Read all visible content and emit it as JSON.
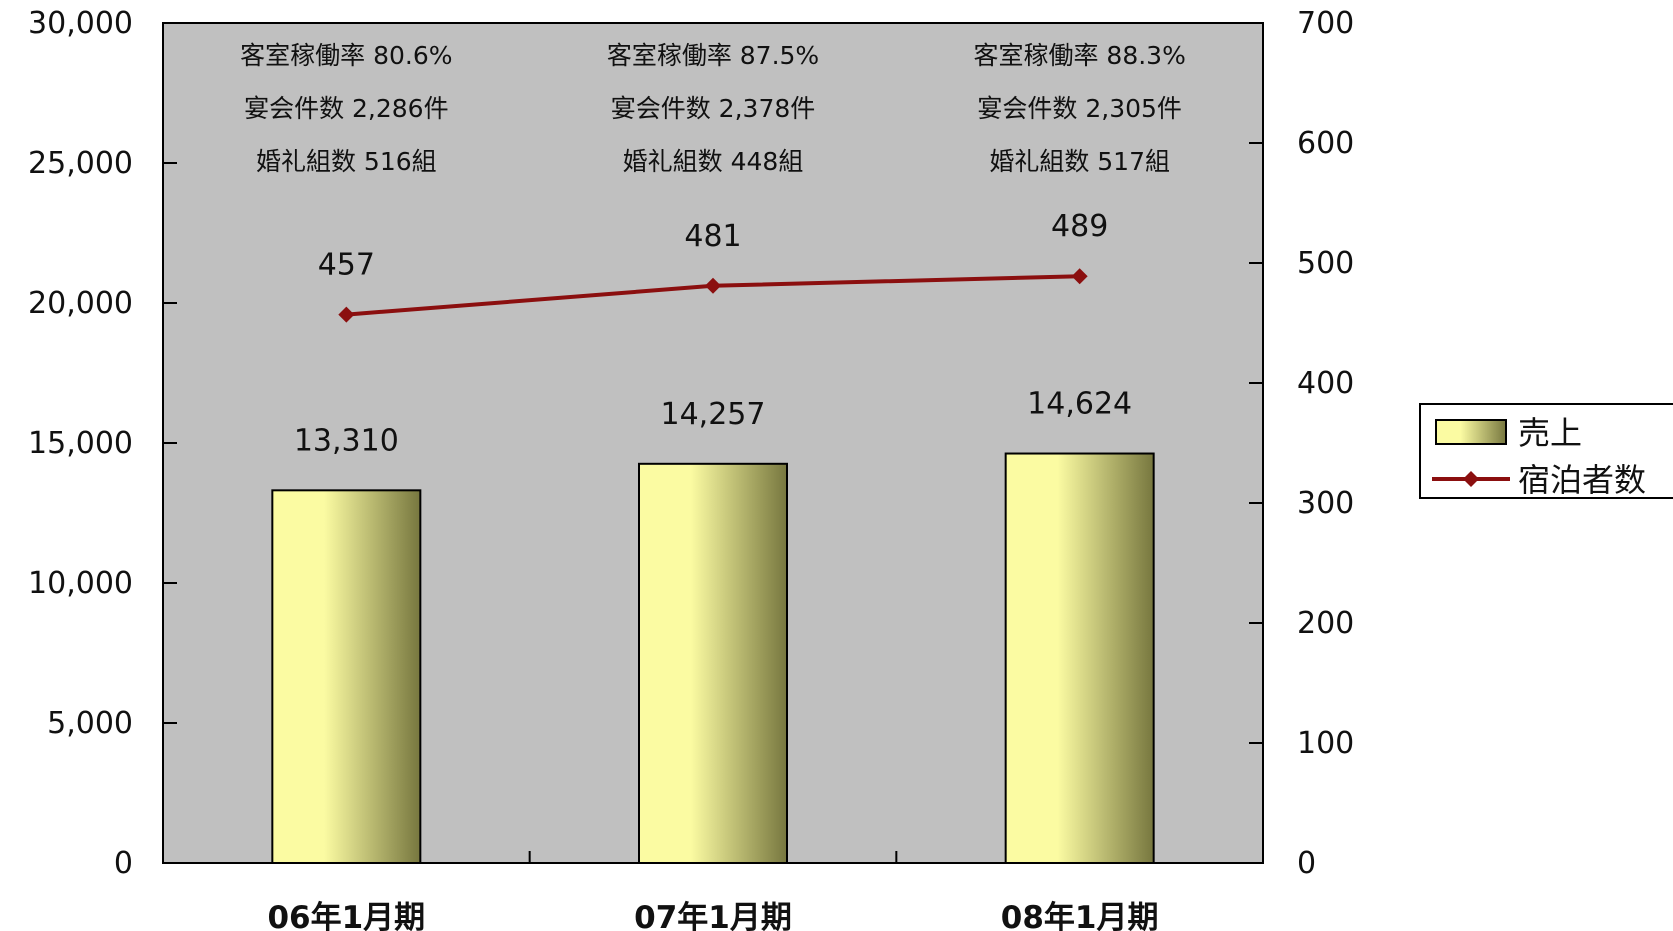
{
  "chart_data": {
    "type": "bar",
    "categories": [
      "06年1月期",
      "07年1月期",
      "08年1月期"
    ],
    "series": [
      {
        "name": "売上",
        "type": "bar",
        "axis": "left",
        "values": [
          13310,
          14257,
          14624
        ],
        "labels": [
          "13,310",
          "14,257",
          "14,624"
        ]
      },
      {
        "name": "宿泊者数",
        "type": "line",
        "axis": "right",
        "values": [
          457,
          481,
          489
        ],
        "labels": [
          "457",
          "481",
          "489"
        ]
      }
    ],
    "y_left": {
      "ylim": [
        0,
        30000
      ],
      "ticks": [
        "0",
        "5,000",
        "10,000",
        "15,000",
        "20,000",
        "25,000",
        "30,000"
      ]
    },
    "y_right": {
      "ylim": [
        0,
        700
      ],
      "ticks": [
        "0",
        "100",
        "200",
        "300",
        "400",
        "500",
        "600",
        "700"
      ]
    },
    "annotations": [
      [
        "客室稼働率  80.6%",
        "宴会件数  2,286件",
        "婚礼組数    516組"
      ],
      [
        "客室稼働率  87.5%",
        "宴会件数  2,378件",
        "婚礼組数    448組"
      ],
      [
        "客室稼働率  88.3%",
        "宴会件数  2,305件",
        "婚礼組数    517組"
      ]
    ],
    "legend_position": "right",
    "colors": {
      "plot_background": "#c0c0c0",
      "bar_light": "#fbfba2",
      "bar_dark": "#77773f",
      "line": "#8b0f0f"
    },
    "grid": false
  }
}
